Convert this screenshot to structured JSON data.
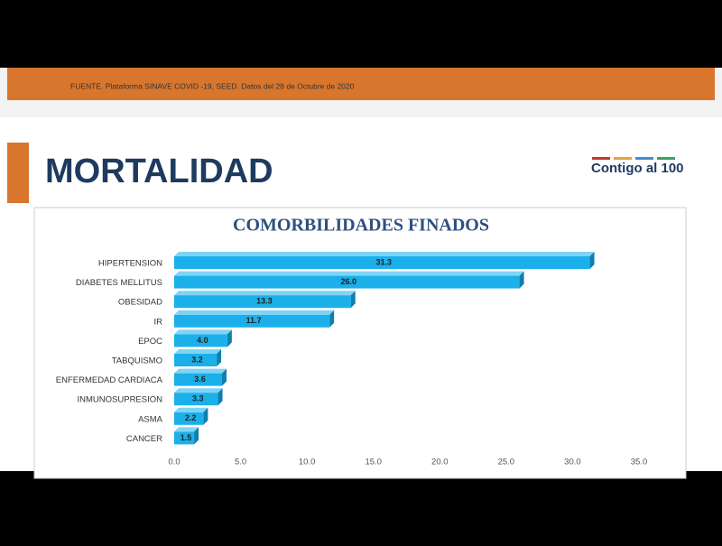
{
  "source": "FUENTE. Plataforma SINAVE COVID -19, SEED. Datos del 28 de Octubre de 2020",
  "heading": "MORTALIDAD",
  "logo": "Contigo al 100",
  "chart_data": {
    "type": "hbar",
    "title": "COMORBILIDADES FINADOS",
    "categories": [
      "HIPERTENSION",
      "DIABETES MELLITUS",
      "OBESIDAD",
      "IR",
      "EPOC",
      "TABQUISMO",
      "ENFERMEDAD CARDIACA",
      "INMUNOSUPRESION",
      "ASMA",
      "CANCER"
    ],
    "values": [
      31.3,
      26.0,
      13.3,
      11.7,
      4.0,
      3.2,
      3.6,
      3.3,
      2.2,
      1.5
    ],
    "value_labels": [
      "31.3",
      "26.0",
      "13.3",
      "11.7",
      "4.0",
      "3.2",
      "3.6",
      "3.3",
      "2.2",
      "1.5"
    ],
    "color": "#1bb0ea",
    "xlim": [
      0,
      35
    ],
    "xticks": [
      {
        "value": 0,
        "label": "0.0"
      },
      {
        "value": 5,
        "label": "5.0"
      },
      {
        "value": 10,
        "label": "10.0"
      },
      {
        "value": 15,
        "label": "15.0"
      },
      {
        "value": 20,
        "label": "20.0"
      },
      {
        "value": 25,
        "label": "25.0"
      },
      {
        "value": 30,
        "label": "30.0"
      },
      {
        "value": 35,
        "label": "35.0"
      }
    ]
  }
}
